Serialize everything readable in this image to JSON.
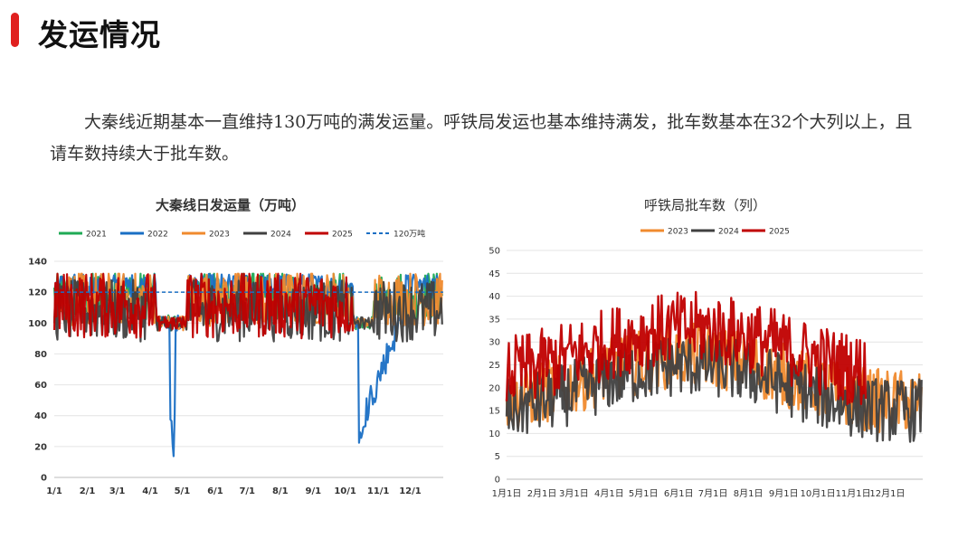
{
  "header": {
    "title": "发运情况",
    "accent_color": "#e0201f"
  },
  "body": {
    "paragraph": "大秦线近期基本一直维持130万吨的满发运量。呼铁局发运也基本维持满发，批车数基本在32个大列以上，且请车数持续大于批车数。"
  },
  "chart_data": [
    {
      "type": "line",
      "title": "大秦线日发运量（万吨）",
      "ylim": [
        0,
        140
      ],
      "y_ticks": [
        "0",
        "20",
        "40",
        "60",
        "80",
        "100",
        "120",
        "140"
      ],
      "x_ticks": [
        "1/1",
        "2/1",
        "3/1",
        "4/1",
        "5/1",
        "6/1",
        "7/1",
        "8/1",
        "9/1",
        "10/1",
        "11/1",
        "12/1"
      ],
      "grid": true,
      "legend_position": "top",
      "series": [
        {
          "name": "2021",
          "color": "#1faa55"
        },
        {
          "name": "2022",
          "color": "#1a6fc4"
        },
        {
          "name": "2023",
          "color": "#f08a2e"
        },
        {
          "name": "2024",
          "color": "#404040"
        },
        {
          "name": "2025",
          "color": "#c00000"
        },
        {
          "name": "120万吨",
          "color": "#1a6fc4",
          "dashed": true,
          "value": 120
        }
      ]
    },
    {
      "type": "line",
      "title": "呼铁局批车数（列）",
      "ylim": [
        0,
        50
      ],
      "y_ticks": [
        "0",
        "5",
        "10",
        "15",
        "20",
        "25",
        "30",
        "35",
        "40",
        "45",
        "50"
      ],
      "x_ticks": [
        "1月1日",
        "2月1日",
        "3月1日",
        "4月1日",
        "5月1日",
        "6月1日",
        "7月1日",
        "8月1日",
        "9月1日",
        "10月1日",
        "11月1日",
        "12月1日"
      ],
      "grid": true,
      "legend_position": "top",
      "series": [
        {
          "name": "2023",
          "color": "#f08a2e"
        },
        {
          "name": "2024",
          "color": "#404040"
        },
        {
          "name": "2025",
          "color": "#c00000"
        }
      ]
    }
  ]
}
